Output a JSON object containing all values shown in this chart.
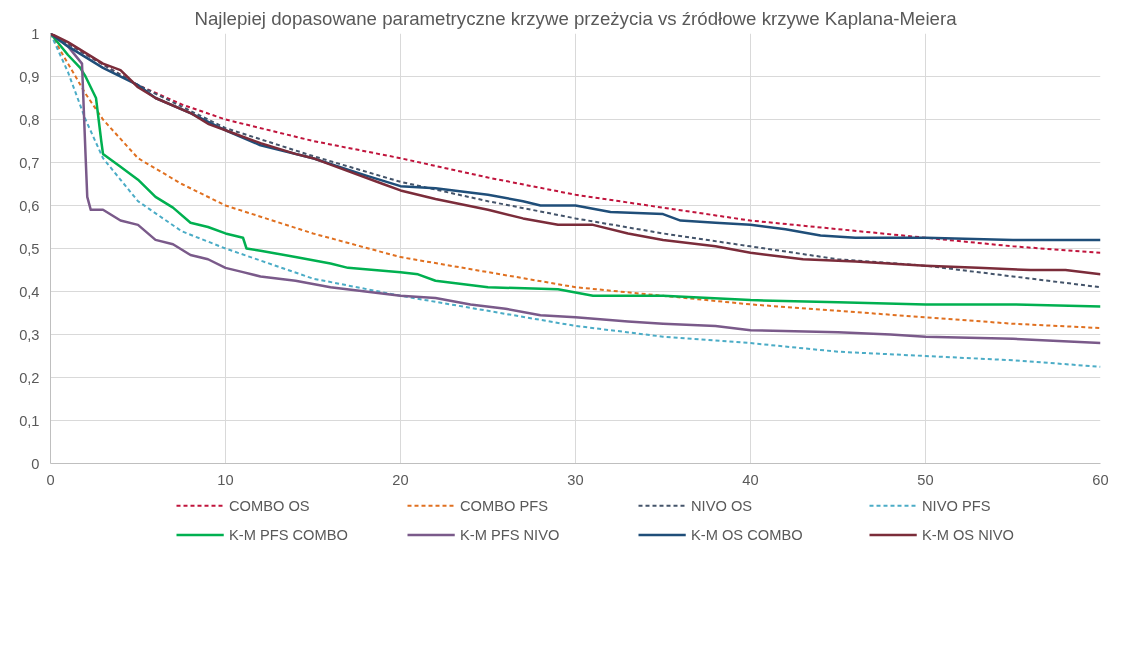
{
  "chart_data": {
    "type": "line",
    "title": "Najlepiej dopasowane parametryczne krzywe przeżycia vs źródłowe krzywe Kaplana-Meiera",
    "xlim": [
      0,
      60
    ],
    "xticks": [
      0,
      10,
      20,
      30,
      40,
      50,
      60
    ],
    "ylim": [
      0,
      1
    ],
    "yticks": [
      0,
      {
        "value": 0.1,
        "label": "0,1"
      },
      {
        "value": 0.2,
        "label": "0,2"
      },
      {
        "value": 0.3,
        "label": "0,3"
      },
      {
        "value": 0.4,
        "label": "0,4"
      },
      {
        "value": 0.5,
        "label": "0,5"
      },
      {
        "value": 0.6,
        "label": "0,6"
      },
      {
        "value": 0.7,
        "label": "0,7"
      },
      {
        "value": 0.8,
        "label": "0,8"
      },
      {
        "value": 0.9,
        "label": "0,9"
      },
      1
    ],
    "grid": true,
    "legend": "bottom",
    "series": [
      {
        "name": "COMBO OS",
        "color": "#c0143c",
        "line_style": "dashed",
        "x": [
          0,
          2.5,
          5,
          7.5,
          10,
          15,
          20,
          25,
          30,
          35,
          40,
          45,
          50,
          55,
          60
        ],
        "values": [
          1,
          0.94,
          0.88,
          0.835,
          0.8,
          0.75,
          0.71,
          0.665,
          0.625,
          0.595,
          0.565,
          0.545,
          0.525,
          0.505,
          0.49
        ]
      },
      {
        "name": "COMBO PFS",
        "color": "#e07020",
        "line_style": "dashed",
        "x": [
          0,
          1,
          2,
          3,
          5,
          7.5,
          10,
          15,
          20,
          25,
          30,
          35,
          40,
          45,
          50,
          55,
          60
        ],
        "values": [
          1,
          0.93,
          0.86,
          0.8,
          0.71,
          0.65,
          0.6,
          0.535,
          0.48,
          0.445,
          0.41,
          0.39,
          0.37,
          0.355,
          0.34,
          0.325,
          0.315
        ]
      },
      {
        "name": "NIVO OS",
        "color": "#44546a",
        "line_style": "dashed",
        "x": [
          0,
          2.5,
          5,
          10,
          15,
          20,
          25,
          30,
          35,
          40,
          45,
          50,
          55,
          60
        ],
        "values": [
          1,
          0.94,
          0.88,
          0.78,
          0.715,
          0.655,
          0.61,
          0.57,
          0.535,
          0.505,
          0.475,
          0.46,
          0.435,
          0.41
        ]
      },
      {
        "name": "NIVO PFS",
        "color": "#4bacc6",
        "line_style": "dashed",
        "x": [
          0,
          1,
          2,
          3,
          5,
          7.5,
          10,
          15,
          20,
          25,
          30,
          35,
          40,
          45,
          50,
          55,
          60
        ],
        "values": [
          1,
          0.91,
          0.8,
          0.71,
          0.61,
          0.54,
          0.5,
          0.43,
          0.39,
          0.355,
          0.32,
          0.295,
          0.28,
          0.26,
          0.25,
          0.24,
          0.225
        ]
      },
      {
        "name": "K-M PFS COMBO",
        "color": "#00b050",
        "line_style": "solid",
        "x": [
          0,
          1,
          1.7,
          2,
          2.6,
          2.9,
          3,
          4,
          5,
          6,
          7,
          8,
          9,
          10,
          11,
          11.2,
          12,
          14,
          16,
          17,
          20,
          21,
          22,
          25,
          29,
          31,
          35,
          40,
          45,
          50,
          55,
          60
        ],
        "values": [
          1,
          0.95,
          0.92,
          0.9,
          0.85,
          0.75,
          0.72,
          0.69,
          0.66,
          0.62,
          0.595,
          0.56,
          0.55,
          0.535,
          0.525,
          0.5,
          0.495,
          0.48,
          0.465,
          0.455,
          0.445,
          0.44,
          0.425,
          0.41,
          0.405,
          0.39,
          0.39,
          0.38,
          0.375,
          0.37,
          0.37,
          0.365
        ]
      },
      {
        "name": "K-M PFS NIVO",
        "color": "#7a5a8a",
        "line_style": "solid",
        "x": [
          0,
          1,
          1.8,
          2,
          2.1,
          2.3,
          3,
          4,
          5,
          6,
          7,
          8,
          9,
          10,
          11,
          12,
          14,
          16,
          18,
          20,
          22,
          24,
          26,
          28,
          30,
          33,
          35,
          38,
          40,
          45,
          48,
          50,
          55,
          60
        ],
        "values": [
          1,
          0.97,
          0.93,
          0.72,
          0.62,
          0.59,
          0.59,
          0.565,
          0.555,
          0.52,
          0.51,
          0.485,
          0.475,
          0.455,
          0.445,
          0.435,
          0.425,
          0.41,
          0.4,
          0.39,
          0.385,
          0.37,
          0.36,
          0.345,
          0.34,
          0.33,
          0.325,
          0.32,
          0.31,
          0.305,
          0.3,
          0.295,
          0.29,
          0.28
        ]
      },
      {
        "name": "K-M OS COMBO",
        "color": "#1f4e79",
        "line_style": "solid",
        "x": [
          0,
          1,
          3,
          5,
          6,
          8,
          10,
          12,
          15,
          18,
          20,
          22,
          25,
          27,
          28,
          30,
          32,
          35,
          36,
          38,
          40,
          42,
          44,
          46,
          50,
          55,
          60
        ],
        "values": [
          1,
          0.97,
          0.92,
          0.88,
          0.85,
          0.815,
          0.775,
          0.74,
          0.71,
          0.67,
          0.645,
          0.64,
          0.625,
          0.61,
          0.6,
          0.6,
          0.585,
          0.58,
          0.565,
          0.56,
          0.555,
          0.545,
          0.53,
          0.525,
          0.525,
          0.52,
          0.52
        ]
      },
      {
        "name": "K-M OS NIVO",
        "color": "#7b2c3a",
        "line_style": "solid",
        "x": [
          0,
          1,
          3,
          4,
          5,
          6,
          8,
          9,
          10,
          12,
          14,
          15,
          17,
          19,
          20,
          22,
          25,
          27,
          29,
          31,
          33,
          35,
          38,
          40,
          43,
          46,
          50,
          53,
          56,
          58,
          60
        ],
        "values": [
          1,
          0.98,
          0.93,
          0.915,
          0.875,
          0.85,
          0.815,
          0.79,
          0.775,
          0.745,
          0.72,
          0.71,
          0.68,
          0.65,
          0.635,
          0.615,
          0.59,
          0.57,
          0.555,
          0.555,
          0.535,
          0.52,
          0.505,
          0.49,
          0.475,
          0.47,
          0.46,
          0.455,
          0.45,
          0.45,
          0.44
        ]
      }
    ]
  }
}
